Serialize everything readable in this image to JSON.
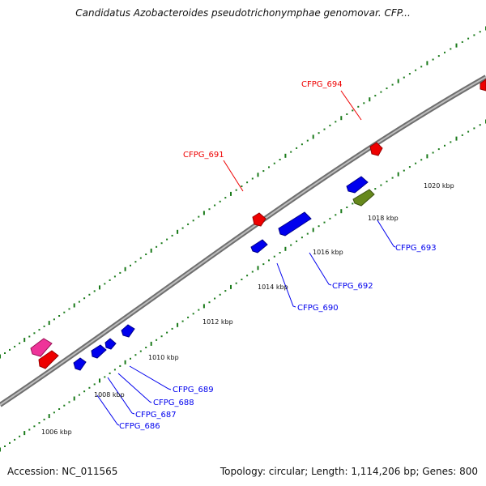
{
  "title": "Candidatus Azobacteroides pseudotrichonymphae genomovar. CFP...",
  "footer": {
    "accession": "Accession: NC_011565",
    "summary": "Topology: circular; Length: 1,114,206 bp; Genes: 800"
  },
  "colors": {
    "forward_gene": "#ee0000",
    "reverse_gene": "#0000ee",
    "rrna_gene": "#66881c",
    "other_gene": "#ee3399",
    "backbone": "#888888"
  },
  "ticks": [
    "1006 kbp",
    "1008 kbp",
    "1010 kbp",
    "1012 kbp",
    "1014 kbp",
    "1016 kbp",
    "1018 kbp",
    "1020 kbp"
  ],
  "gene_labels": {
    "forward": [
      "CFPG_694",
      "CFPG_691"
    ],
    "reverse": [
      "CFPG_693",
      "CFPG_692",
      "CFPG_690",
      "CFPG_689",
      "CFPG_688",
      "CFPG_687",
      "CFPG_686"
    ]
  }
}
